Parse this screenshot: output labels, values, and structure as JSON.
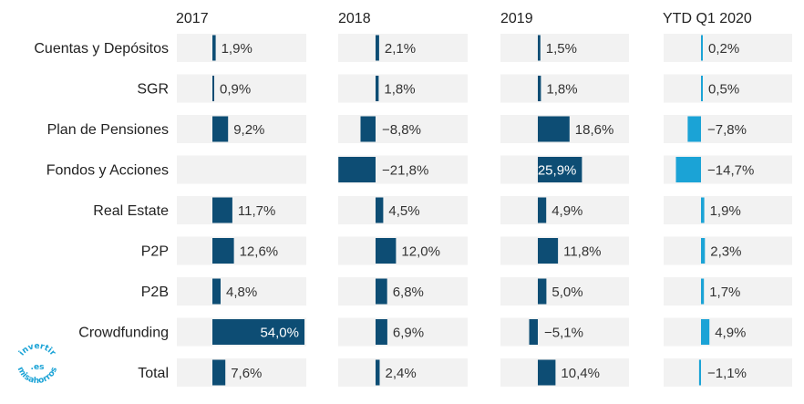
{
  "chart_data": {
    "type": "bar",
    "orientation": "horizontal",
    "layout": "small-multiples",
    "categories": [
      "Cuentas y Depósitos",
      "SGR",
      "Plan de Pensiones",
      "Fondos y Acciones",
      "Real Estate",
      "P2P",
      "P2B",
      "Crowdfunding",
      "Total"
    ],
    "series": [
      {
        "name": "2017",
        "values": [
          1.9,
          0.9,
          9.2,
          null,
          11.7,
          12.6,
          4.8,
          54.0,
          7.6
        ],
        "labels": [
          "1,9%",
          "0,9%",
          "9,2%",
          "",
          "11,7%",
          "12,6%",
          "4,8%",
          "54,0%",
          "7,6%"
        ]
      },
      {
        "name": "2018",
        "values": [
          2.1,
          1.8,
          -8.8,
          -21.8,
          4.5,
          12.0,
          6.8,
          6.9,
          2.4
        ],
        "labels": [
          "2,1%",
          "1,8%",
          "−8,8%",
          "−21,8%",
          "4,5%",
          "12,0%",
          "6,8%",
          "6,9%",
          "2,4%"
        ]
      },
      {
        "name": "2019",
        "values": [
          1.5,
          1.8,
          18.6,
          25.9,
          4.9,
          11.8,
          5.0,
          -5.1,
          10.4
        ],
        "labels": [
          "1,5%",
          "1,8%",
          "18,6%",
          "25,9%",
          "4,9%",
          "11,8%",
          "5,0%",
          "−5,1%",
          "10,4%"
        ]
      },
      {
        "name": "YTD Q1 2020",
        "values": [
          0.2,
          0.5,
          -7.8,
          -14.7,
          1.9,
          2.3,
          1.7,
          4.9,
          -1.1
        ],
        "labels": [
          "0,2%",
          "0,5%",
          "−7,8%",
          "−14,7%",
          "1,9%",
          "2,3%",
          "1,7%",
          "4,9%",
          "−1,1%"
        ]
      }
    ],
    "colors": {
      "bar": "#0d4d74",
      "bar_ytd": "#1ba3d6",
      "cell_background": "#f2f2f2",
      "text": "#222222"
    }
  },
  "watermark": {
    "lines": [
      "invertir",
      ".es",
      "misahorros"
    ],
    "color": "#1ba3d6"
  }
}
